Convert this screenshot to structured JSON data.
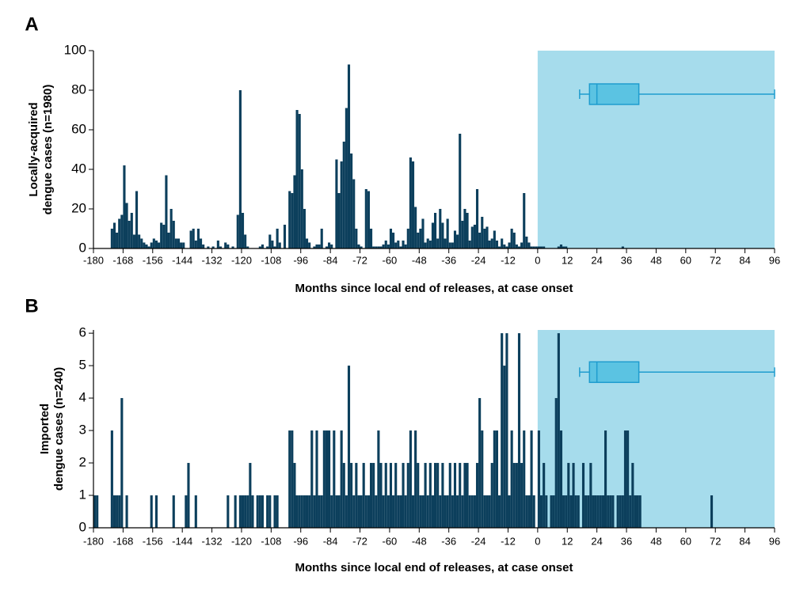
{
  "chart_data": [
    {
      "type": "bar",
      "panel": "A",
      "ylabel": [
        "Locally-acquired",
        "dengue cases (n=1980)"
      ],
      "xlabel": "Months since local end of releases, at case onset",
      "color": "#0c3f5c",
      "shade_color": "#a6dcec",
      "box_color": "#5bc3e2",
      "box_stroke": "#1f9cce",
      "xlim": [
        -180,
        96
      ],
      "ylim": [
        0,
        100
      ],
      "xticks": [
        -180,
        -168,
        -156,
        -144,
        -132,
        -120,
        -108,
        -96,
        -84,
        -72,
        -60,
        -48,
        -36,
        -24,
        -12,
        0,
        12,
        24,
        36,
        48,
        60,
        72,
        84,
        96
      ],
      "yticks": [
        0,
        20,
        40,
        60,
        80,
        100
      ],
      "shaded_region": [
        0,
        96
      ],
      "boxplot": {
        "min": 17,
        "q1": 21,
        "median": 24,
        "q3": 41,
        "max": 96
      },
      "x": [
        -173,
        -172,
        -171,
        -170,
        -169,
        -168,
        -167,
        -166,
        -165,
        -164,
        -163,
        -162,
        -161,
        -160,
        -159,
        -158,
        -157,
        -156,
        -155,
        -154,
        -153,
        -152,
        -151,
        -150,
        -149,
        -148,
        -147,
        -146,
        -145,
        -144,
        -141,
        -140,
        -139,
        -138,
        -137,
        -136,
        -134,
        -132,
        -130,
        -129,
        -127,
        -126,
        -124,
        -122,
        -121,
        -120,
        -119,
        -118,
        -113,
        -112,
        -110,
        -109,
        -108,
        -107,
        -106,
        -105,
        -103,
        -101,
        -100,
        -99,
        -98,
        -97,
        -96,
        -95,
        -94,
        -93,
        -91,
        -90,
        -89,
        -88,
        -86,
        -85,
        -84,
        -82,
        -81,
        -80,
        -79,
        -78,
        -77,
        -76,
        -75,
        -74,
        -73,
        -72,
        -70,
        -69,
        -68,
        -67,
        -66,
        -65,
        -64,
        -63,
        -62,
        -61,
        -60,
        -59,
        -58,
        -57,
        -56,
        -55,
        -54,
        -53,
        -52,
        -51,
        -50,
        -49,
        -48,
        -47,
        -46,
        -45,
        -44,
        -43,
        -42,
        -41,
        -40,
        -39,
        -38,
        -37,
        -36,
        -35,
        -34,
        -33,
        -32,
        -31,
        -30,
        -29,
        -28,
        -27,
        -26,
        -25,
        -24,
        -23,
        -22,
        -21,
        -20,
        -19,
        -18,
        -17,
        -16,
        -15,
        -14,
        -13,
        -12,
        -11,
        -10,
        -9,
        -8,
        -7,
        -6,
        -5,
        -4,
        -3,
        -2,
        -1,
        0,
        1,
        2,
        8,
        9,
        10,
        11,
        34
      ],
      "values": [
        10,
        13,
        8,
        15,
        17,
        42,
        23,
        14,
        18,
        7,
        29,
        7,
        5,
        3,
        2,
        1,
        3,
        5,
        4,
        3,
        13,
        12,
        37,
        8,
        20,
        14,
        5,
        5,
        3,
        3,
        9,
        10,
        4,
        10,
        5,
        2,
        1,
        1,
        4,
        1,
        3,
        2,
        1,
        17,
        80,
        18,
        7,
        1,
        1,
        2,
        1,
        7,
        4,
        1,
        10,
        3,
        12,
        29,
        28,
        37,
        70,
        68,
        40,
        20,
        5,
        3,
        1,
        2,
        2,
        10,
        1,
        3,
        2,
        45,
        28,
        44,
        54,
        71,
        93,
        48,
        35,
        10,
        2,
        1,
        30,
        29,
        10,
        1,
        1,
        1,
        1,
        2,
        4,
        2,
        10,
        8,
        3,
        4,
        1,
        4,
        2,
        10,
        46,
        44,
        21,
        8,
        10,
        15,
        3,
        5,
        4,
        13,
        18,
        5,
        20,
        13,
        5,
        15,
        3,
        3,
        9,
        7,
        58,
        14,
        20,
        18,
        4,
        11,
        12,
        30,
        8,
        16,
        10,
        11,
        4,
        5,
        9,
        4,
        1,
        5,
        2,
        1,
        3,
        10,
        8,
        2,
        1,
        3,
        28,
        6,
        3,
        1,
        1,
        1,
        1,
        1,
        1,
        1,
        2,
        1,
        1,
        1
      ]
    },
    {
      "type": "bar",
      "panel": "B",
      "ylabel": [
        "Imported",
        "dengue cases (n=240)"
      ],
      "xlabel": "Months since local end of releases, at case onset",
      "color": "#0c3f5c",
      "shade_color": "#a6dcec",
      "box_color": "#5bc3e2",
      "box_stroke": "#1f9cce",
      "xlim": [
        -180,
        96
      ],
      "ylim": [
        0,
        6.1
      ],
      "xticks": [
        -180,
        -168,
        -156,
        -144,
        -132,
        -120,
        -108,
        -96,
        -84,
        -72,
        -60,
        -48,
        -36,
        -24,
        -12,
        0,
        12,
        24,
        36,
        48,
        60,
        72,
        84,
        96
      ],
      "yticks": [
        0,
        1,
        2,
        3,
        4,
        5,
        6
      ],
      "shaded_region": [
        0,
        96
      ],
      "boxplot": {
        "min": 17,
        "q1": 21,
        "median": 24,
        "q3": 41,
        "max": 96
      },
      "x": [
        -180,
        -179,
        -173,
        -172,
        -171,
        -170,
        -169,
        -167,
        -157,
        -155,
        -148,
        -143,
        -142,
        -139,
        -126,
        -123,
        -121,
        -120,
        -119,
        -118,
        -117,
        -116,
        -114,
        -113,
        -112,
        -110,
        -109,
        -107,
        -106,
        -101,
        -100,
        -99,
        -98,
        -97,
        -96,
        -95,
        -94,
        -93,
        -92,
        -91,
        -90,
        -89,
        -88,
        -87,
        -86,
        -85,
        -84,
        -83,
        -82,
        -81,
        -80,
        -79,
        -78,
        -77,
        -76,
        -75,
        -74,
        -73,
        -72,
        -71,
        -70,
        -69,
        -68,
        -67,
        -66,
        -65,
        -64,
        -63,
        -62,
        -61,
        -60,
        -59,
        -58,
        -57,
        -56,
        -55,
        -54,
        -53,
        -52,
        -51,
        -50,
        -49,
        -48,
        -47,
        -46,
        -45,
        -44,
        -43,
        -42,
        -41,
        -40,
        -39,
        -38,
        -37,
        -36,
        -35,
        -34,
        -33,
        -32,
        -31,
        -30,
        -29,
        -28,
        -27,
        -26,
        -25,
        -24,
        -23,
        -22,
        -21,
        -20,
        -19,
        -18,
        -17,
        -16,
        -15,
        -14,
        -13,
        -12,
        -11,
        -10,
        -9,
        -8,
        -7,
        -6,
        -5,
        -4,
        -3,
        -2,
        0,
        1,
        2,
        3,
        5,
        6,
        7,
        8,
        9,
        10,
        11,
        12,
        13,
        14,
        15,
        16,
        18,
        19,
        20,
        21,
        22,
        23,
        24,
        25,
        26,
        27,
        28,
        29,
        30,
        32,
        33,
        34,
        35,
        36,
        37,
        38,
        39,
        40,
        41,
        70
      ],
      "values": [
        1,
        1,
        3,
        1,
        1,
        1,
        4,
        1,
        1,
        1,
        1,
        1,
        2,
        1,
        1,
        1,
        1,
        1,
        1,
        1,
        2,
        1,
        1,
        1,
        1,
        1,
        1,
        1,
        1,
        3,
        3,
        2,
        1,
        1,
        1,
        1,
        1,
        1,
        3,
        1,
        3,
        1,
        1,
        3,
        3,
        3,
        1,
        3,
        1,
        1,
        3,
        2,
        1,
        5,
        2,
        1,
        2,
        1,
        1,
        2,
        1,
        1,
        2,
        2,
        1,
        3,
        2,
        1,
        2,
        1,
        2,
        1,
        2,
        1,
        1,
        2,
        1,
        2,
        3,
        1,
        3,
        2,
        1,
        1,
        2,
        1,
        2,
        1,
        2,
        2,
        1,
        2,
        1,
        1,
        2,
        1,
        2,
        1,
        2,
        1,
        2,
        2,
        1,
        1,
        1,
        2,
        4,
        3,
        1,
        1,
        1,
        2,
        3,
        3,
        1,
        6,
        5,
        6,
        1,
        3,
        2,
        2,
        6,
        2,
        3,
        1,
        1,
        3,
        1,
        3,
        1,
        2,
        1,
        1,
        1,
        4,
        6,
        3,
        1,
        1,
        2,
        1,
        2,
        1,
        1,
        2,
        1,
        1,
        2,
        1,
        1,
        1,
        1,
        1,
        3,
        1,
        1,
        1,
        1,
        1,
        1,
        3,
        3,
        1,
        2,
        1,
        1,
        1,
        1
      ]
    }
  ]
}
